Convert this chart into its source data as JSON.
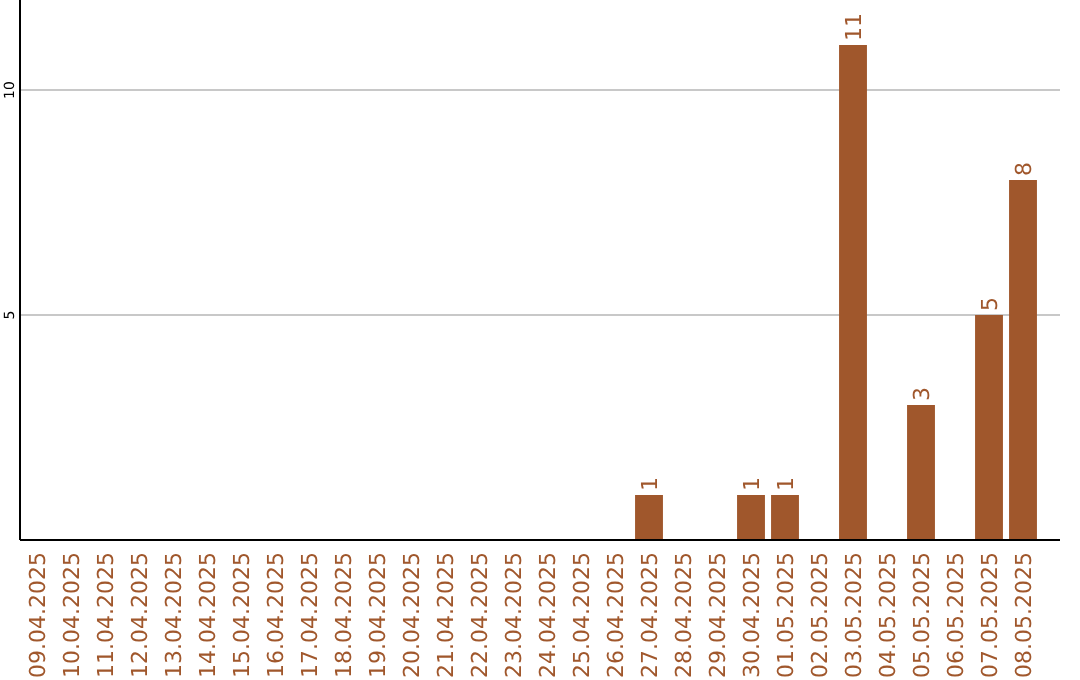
{
  "chart_data": {
    "type": "bar",
    "categories": [
      "09.04.2025",
      "10.04.2025",
      "11.04.2025",
      "12.04.2025",
      "13.04.2025",
      "14.04.2025",
      "15.04.2025",
      "16.04.2025",
      "17.04.2025",
      "18.04.2025",
      "19.04.2025",
      "20.04.2025",
      "21.04.2025",
      "22.04.2025",
      "23.04.2025",
      "24.04.2025",
      "25.04.2025",
      "26.04.2025",
      "27.04.2025",
      "28.04.2025",
      "29.04.2025",
      "30.04.2025",
      "01.05.2025",
      "02.05.2025",
      "03.05.2025",
      "04.05.2025",
      "05.05.2025",
      "06.05.2025",
      "07.05.2025",
      "08.05.2025"
    ],
    "values": [
      0,
      0,
      0,
      0,
      0,
      0,
      0,
      0,
      0,
      0,
      0,
      0,
      0,
      0,
      0,
      0,
      0,
      0,
      1,
      0,
      0,
      1,
      1,
      0,
      11,
      0,
      3,
      0,
      5,
      8
    ],
    "value_labels": [
      null,
      null,
      null,
      null,
      null,
      null,
      null,
      null,
      null,
      null,
      null,
      null,
      null,
      null,
      null,
      null,
      null,
      null,
      "1",
      null,
      null,
      "1",
      "1",
      null,
      "11",
      null,
      "3",
      null,
      "5",
      "8"
    ],
    "color": "#a0572c",
    "ylim": [
      0,
      12
    ],
    "yticks": [
      5,
      10
    ],
    "grid": "y"
  }
}
